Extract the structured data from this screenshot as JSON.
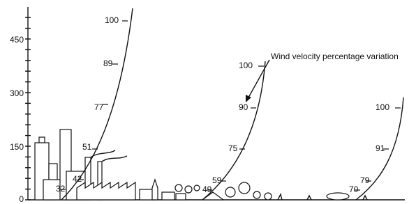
{
  "y_axis": {
    "ticks": [
      "0",
      "150",
      "300",
      "450"
    ]
  },
  "profiles": [
    {
      "labels": [
        "32",
        "42",
        "51",
        "77",
        "89",
        "100"
      ]
    },
    {
      "labels": [
        "49",
        "59",
        "75",
        "90",
        "100"
      ]
    },
    {
      "labels": [
        "70",
        "79",
        "91",
        "100"
      ]
    }
  ],
  "annotation": "Wind velocity percentage variation"
}
